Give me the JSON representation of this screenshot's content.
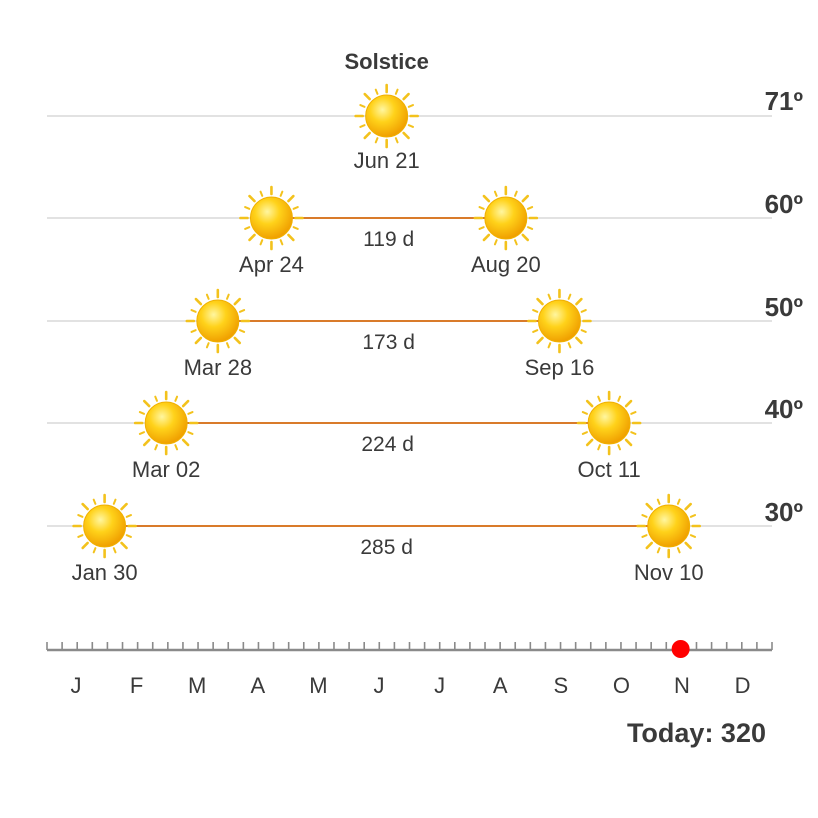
{
  "chart_data": {
    "type": "scatter",
    "solstice": {
      "label": "Solstice",
      "date": "Jun 21",
      "altitude_label": "71º"
    },
    "rows": [
      {
        "altitude_label": "60º",
        "rise_date": "Apr 24",
        "set_date": "Aug 20",
        "duration": "119 d"
      },
      {
        "altitude_label": "50º",
        "rise_date": "Mar 28",
        "set_date": "Sep 16",
        "duration": "173 d"
      },
      {
        "altitude_label": "40º",
        "rise_date": "Mar 02",
        "set_date": "Oct 11",
        "duration": "224 d"
      },
      {
        "altitude_label": "30º",
        "rise_date": "Jan 30",
        "set_date": "Nov 10",
        "duration": "285 d"
      }
    ],
    "months": [
      "J",
      "F",
      "M",
      "A",
      "M",
      "J",
      "J",
      "A",
      "S",
      "O",
      "N",
      "D"
    ],
    "today": {
      "label": "Today: 320",
      "day_of_year": 320
    },
    "colors": {
      "duration_line": "#d97b2a",
      "grid": "#d9d9d9",
      "today_marker": "#ff0000",
      "sun": "#f5b800"
    },
    "icon": "sun-icon"
  }
}
